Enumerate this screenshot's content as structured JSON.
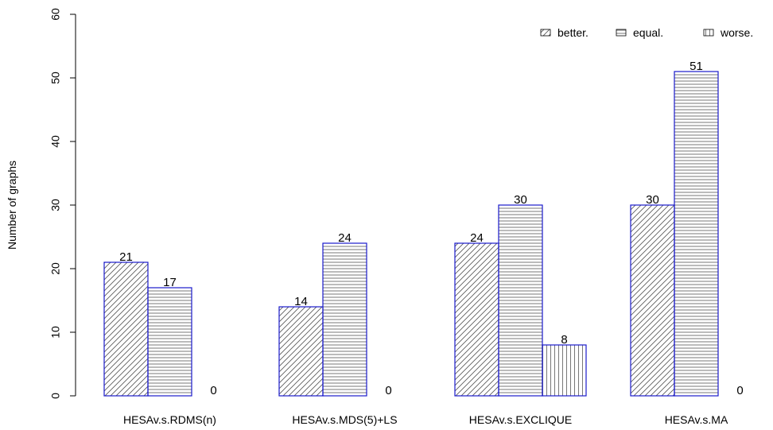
{
  "chart_data": {
    "type": "bar",
    "title": "",
    "xlabel": "",
    "ylabel": "Number of graphs",
    "ylim": [
      0,
      60
    ],
    "yticks": [
      "0",
      "10",
      "20",
      "30",
      "40",
      "50",
      "60"
    ],
    "categories": [
      "HESAv.s.RDMS(n)",
      "HESAv.s.MDS(5)+LS",
      "HESAv.s.EXCLIQUE",
      "HESAv.s.MA"
    ],
    "series": [
      {
        "name": "better.",
        "values": [
          21,
          14,
          24,
          30
        ],
        "pattern": "diagonal"
      },
      {
        "name": "equal.",
        "values": [
          17,
          24,
          30,
          51
        ],
        "pattern": "horizontal"
      },
      {
        "name": "worse.",
        "values": [
          0,
          0,
          8,
          0
        ],
        "pattern": "vertical"
      }
    ],
    "data_labels": [
      [
        "21",
        "17",
        "0"
      ],
      [
        "14",
        "24",
        "0"
      ],
      [
        "24",
        "30",
        "8"
      ],
      [
        "30",
        "51",
        "0"
      ]
    ],
    "legend_position": "top-right",
    "grid": false,
    "colors": {
      "bar_border": "#1a1acc",
      "hatch": "#555555"
    }
  }
}
